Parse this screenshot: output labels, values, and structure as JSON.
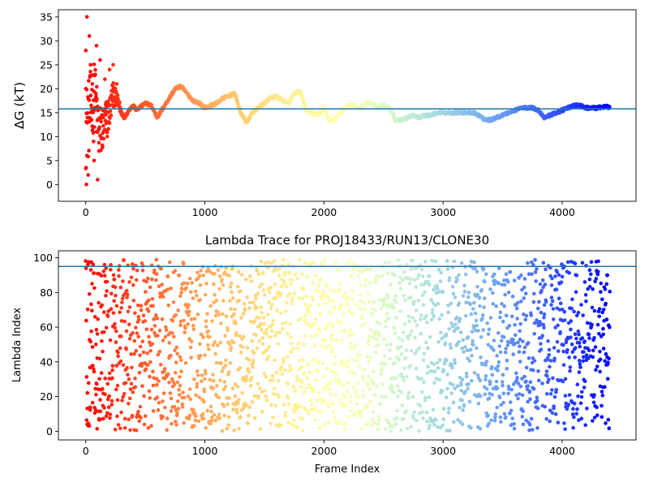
{
  "chart_data": [
    {
      "type": "scatter",
      "title": "",
      "xlabel": "",
      "ylabel": "ΔG (kT)",
      "xlim": [
        -230,
        4620
      ],
      "ylim": [
        -3.5,
        36.5
      ],
      "xticks": [
        0,
        1000,
        2000,
        3000,
        4000
      ],
      "yticks": [
        0,
        5,
        10,
        15,
        20,
        25,
        30,
        35
      ],
      "hline": 15.8,
      "hline_color": "#1f77b4",
      "colormap": "rainbow (red at frame 0 to violet at last frame)",
      "n_frames": 4400,
      "grid": false,
      "trace_points": [
        [
          0,
          12
        ],
        [
          25,
          14
        ],
        [
          50,
          17
        ],
        [
          75,
          19
        ],
        [
          100,
          13
        ],
        [
          125,
          11
        ],
        [
          150,
          12
        ],
        [
          175,
          14
        ],
        [
          200,
          15
        ],
        [
          225,
          19
        ],
        [
          250,
          18
        ],
        [
          275,
          17
        ],
        [
          300,
          15
        ],
        [
          325,
          14
        ],
        [
          350,
          15
        ],
        [
          375,
          16
        ],
        [
          400,
          16.5
        ],
        [
          425,
          15.5
        ],
        [
          450,
          16
        ],
        [
          475,
          16.5
        ],
        [
          500,
          17
        ],
        [
          550,
          16.5
        ],
        [
          600,
          14
        ],
        [
          650,
          16
        ],
        [
          700,
          18
        ],
        [
          750,
          20
        ],
        [
          800,
          20.5
        ],
        [
          850,
          19
        ],
        [
          900,
          17.5
        ],
        [
          950,
          17
        ],
        [
          1000,
          16
        ],
        [
          1050,
          16.5
        ],
        [
          1100,
          17
        ],
        [
          1150,
          18
        ],
        [
          1200,
          18.5
        ],
        [
          1250,
          19
        ],
        [
          1300,
          15
        ],
        [
          1350,
          13
        ],
        [
          1400,
          15
        ],
        [
          1450,
          16
        ],
        [
          1500,
          17
        ],
        [
          1550,
          18
        ],
        [
          1600,
          18.5
        ],
        [
          1650,
          17.5
        ],
        [
          1700,
          17
        ],
        [
          1750,
          19
        ],
        [
          1800,
          19.5
        ],
        [
          1850,
          15.5
        ],
        [
          1900,
          15
        ],
        [
          1950,
          14.5
        ],
        [
          2000,
          16
        ],
        [
          2050,
          13
        ],
        [
          2100,
          14
        ],
        [
          2150,
          15
        ],
        [
          2200,
          16.5
        ],
        [
          2250,
          16.5
        ],
        [
          2300,
          16
        ],
        [
          2350,
          17
        ],
        [
          2400,
          17
        ],
        [
          2450,
          16
        ],
        [
          2500,
          16.5
        ],
        [
          2550,
          16
        ],
        [
          2600,
          13.5
        ],
        [
          2650,
          13.5
        ],
        [
          2700,
          14
        ],
        [
          2750,
          14.5
        ],
        [
          2800,
          14
        ],
        [
          2850,
          14.5
        ],
        [
          2900,
          14.5
        ],
        [
          2950,
          15
        ],
        [
          3000,
          15
        ],
        [
          3050,
          15
        ],
        [
          3100,
          15
        ],
        [
          3150,
          15
        ],
        [
          3200,
          15
        ],
        [
          3250,
          15
        ],
        [
          3300,
          14.5
        ],
        [
          3350,
          13.5
        ],
        [
          3400,
          13.5
        ],
        [
          3450,
          14
        ],
        [
          3500,
          14.5
        ],
        [
          3550,
          15
        ],
        [
          3600,
          15.5
        ],
        [
          3650,
          16
        ],
        [
          3700,
          16
        ],
        [
          3750,
          16
        ],
        [
          3800,
          15.5
        ],
        [
          3850,
          14
        ],
        [
          3900,
          14.5
        ],
        [
          3950,
          15
        ],
        [
          4000,
          15.5
        ],
        [
          4050,
          16
        ],
        [
          4100,
          16.5
        ],
        [
          4150,
          16.5
        ],
        [
          4200,
          16
        ],
        [
          4250,
          16
        ],
        [
          4300,
          16
        ],
        [
          4350,
          16.2
        ],
        [
          4400,
          16.2
        ]
      ],
      "early_outlier_points": [
        [
          0,
          20
        ],
        [
          0,
          28
        ],
        [
          5,
          0
        ],
        [
          10,
          35
        ],
        [
          20,
          2
        ],
        [
          30,
          31
        ],
        [
          40,
          25
        ],
        [
          55,
          21
        ],
        [
          65,
          9
        ],
        [
          70,
          5
        ],
        [
          80,
          23
        ],
        [
          90,
          29
        ],
        [
          100,
          1
        ],
        [
          110,
          7
        ],
        [
          120,
          26
        ],
        [
          140,
          8
        ],
        [
          160,
          22
        ],
        [
          180,
          10
        ],
        [
          200,
          24
        ],
        [
          230,
          25
        ],
        [
          260,
          21
        ]
      ]
    },
    {
      "type": "scatter",
      "title": "Lambda Trace for PROJ18433/RUN13/CLONE30",
      "xlabel": "Frame Index",
      "ylabel": "Lambda Index",
      "xlim": [
        -230,
        4620
      ],
      "ylim": [
        -5,
        104
      ],
      "xticks": [
        0,
        1000,
        2000,
        3000,
        4000
      ],
      "yticks": [
        0,
        20,
        40,
        60,
        80,
        100
      ],
      "hline": 95,
      "hline_color": "#1f77b4",
      "colormap": "rainbow (red at frame 0 to violet at last frame)",
      "n_frames": 4400,
      "value_range": [
        0,
        99
      ],
      "grid": false
    }
  ]
}
